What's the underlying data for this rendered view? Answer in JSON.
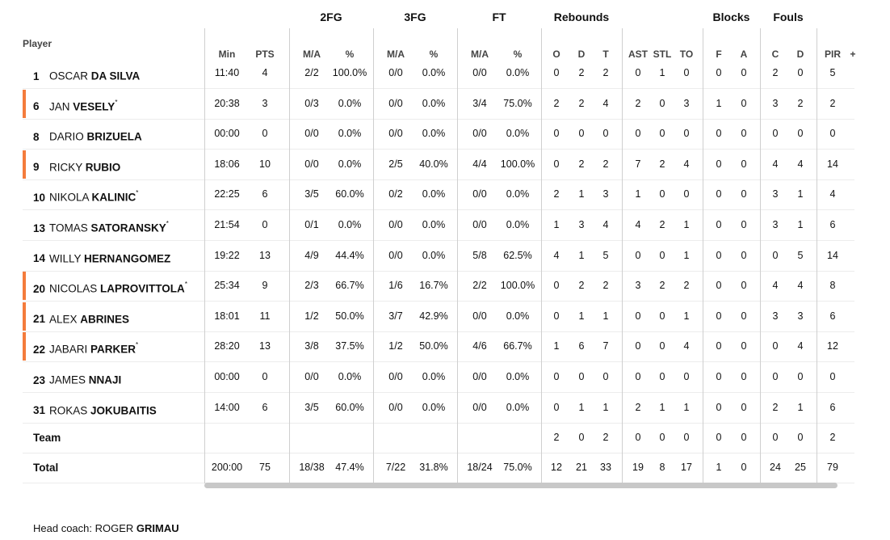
{
  "header": {
    "player_label": "Player",
    "groups": [
      "2FG",
      "3FG",
      "FT",
      "Rebounds",
      "Blocks",
      "Fouls"
    ],
    "cols": [
      "Min",
      "PTS",
      "M/A",
      "%",
      "M/A",
      "%",
      "M/A",
      "%",
      "O",
      "D",
      "T",
      "AST",
      "STL",
      "TO",
      "F",
      "A",
      "C",
      "D",
      "PIR"
    ],
    "plus": "+"
  },
  "players": [
    {
      "num": "1",
      "first": "OSCAR",
      "last": "DA SILVA",
      "star": "",
      "starter": false,
      "stats": [
        "11:40",
        "4",
        "2/2",
        "100.0%",
        "0/0",
        "0.0%",
        "0/0",
        "0.0%",
        "0",
        "2",
        "2",
        "0",
        "1",
        "0",
        "0",
        "0",
        "2",
        "0",
        "5"
      ]
    },
    {
      "num": "6",
      "first": "JAN",
      "last": "VESELY",
      "star": "*",
      "starter": true,
      "stats": [
        "20:38",
        "3",
        "0/3",
        "0.0%",
        "0/0",
        "0.0%",
        "3/4",
        "75.0%",
        "2",
        "2",
        "4",
        "2",
        "0",
        "3",
        "1",
        "0",
        "3",
        "2",
        "2"
      ]
    },
    {
      "num": "8",
      "first": "DARIO",
      "last": "BRIZUELA",
      "star": "",
      "starter": false,
      "stats": [
        "00:00",
        "0",
        "0/0",
        "0.0%",
        "0/0",
        "0.0%",
        "0/0",
        "0.0%",
        "0",
        "0",
        "0",
        "0",
        "0",
        "0",
        "0",
        "0",
        "0",
        "0",
        "0"
      ]
    },
    {
      "num": "9",
      "first": "RICKY",
      "last": "RUBIO",
      "star": "",
      "starter": true,
      "stats": [
        "18:06",
        "10",
        "0/0",
        "0.0%",
        "2/5",
        "40.0%",
        "4/4",
        "100.0%",
        "0",
        "2",
        "2",
        "7",
        "2",
        "4",
        "0",
        "0",
        "4",
        "4",
        "14"
      ]
    },
    {
      "num": "10",
      "first": "NIKOLA",
      "last": "KALINIC",
      "star": "*",
      "starter": false,
      "stats": [
        "22:25",
        "6",
        "3/5",
        "60.0%",
        "0/2",
        "0.0%",
        "0/0",
        "0.0%",
        "2",
        "1",
        "3",
        "1",
        "0",
        "0",
        "0",
        "0",
        "3",
        "1",
        "4"
      ]
    },
    {
      "num": "13",
      "first": "TOMAS",
      "last": "SATORANSKY",
      "star": "*",
      "starter": false,
      "stats": [
        "21:54",
        "0",
        "0/1",
        "0.0%",
        "0/0",
        "0.0%",
        "0/0",
        "0.0%",
        "1",
        "3",
        "4",
        "4",
        "2",
        "1",
        "0",
        "0",
        "3",
        "1",
        "6"
      ]
    },
    {
      "num": "14",
      "first": "WILLY",
      "last": "HERNANGOMEZ",
      "star": "",
      "starter": false,
      "stats": [
        "19:22",
        "13",
        "4/9",
        "44.4%",
        "0/0",
        "0.0%",
        "5/8",
        "62.5%",
        "4",
        "1",
        "5",
        "0",
        "0",
        "1",
        "0",
        "0",
        "0",
        "5",
        "14"
      ]
    },
    {
      "num": "20",
      "first": "NICOLAS",
      "last": "LAPROVITTOLA",
      "star": "*",
      "starter": true,
      "stats": [
        "25:34",
        "9",
        "2/3",
        "66.7%",
        "1/6",
        "16.7%",
        "2/2",
        "100.0%",
        "0",
        "2",
        "2",
        "3",
        "2",
        "2",
        "0",
        "0",
        "4",
        "4",
        "8"
      ]
    },
    {
      "num": "21",
      "first": "ALEX",
      "last": "ABRINES",
      "star": "",
      "starter": true,
      "stats": [
        "18:01",
        "11",
        "1/2",
        "50.0%",
        "3/7",
        "42.9%",
        "0/0",
        "0.0%",
        "0",
        "1",
        "1",
        "0",
        "0",
        "1",
        "0",
        "0",
        "3",
        "3",
        "6"
      ]
    },
    {
      "num": "22",
      "first": "JABARI",
      "last": "PARKER",
      "star": "*",
      "starter": true,
      "stats": [
        "28:20",
        "13",
        "3/8",
        "37.5%",
        "1/2",
        "50.0%",
        "4/6",
        "66.7%",
        "1",
        "6",
        "7",
        "0",
        "0",
        "4",
        "0",
        "0",
        "0",
        "4",
        "12"
      ]
    },
    {
      "num": "23",
      "first": "JAMES",
      "last": "NNAJI",
      "star": "",
      "starter": false,
      "stats": [
        "00:00",
        "0",
        "0/0",
        "0.0%",
        "0/0",
        "0.0%",
        "0/0",
        "0.0%",
        "0",
        "0",
        "0",
        "0",
        "0",
        "0",
        "0",
        "0",
        "0",
        "0",
        "0"
      ]
    },
    {
      "num": "31",
      "first": "ROKAS",
      "last": "JOKUBAITIS",
      "star": "",
      "starter": false,
      "stats": [
        "14:00",
        "6",
        "3/5",
        "60.0%",
        "0/0",
        "0.0%",
        "0/0",
        "0.0%",
        "0",
        "1",
        "1",
        "2",
        "1",
        "1",
        "0",
        "0",
        "2",
        "1",
        "6"
      ]
    }
  ],
  "team": {
    "label": "Team",
    "stats": [
      "",
      "",
      "",
      "",
      "",
      "",
      "",
      "",
      "2",
      "0",
      "2",
      "0",
      "0",
      "0",
      "0",
      "0",
      "0",
      "0",
      "2"
    ]
  },
  "total": {
    "label": "Total",
    "stats": [
      "200:00",
      "75",
      "18/38",
      "47.4%",
      "7/22",
      "31.8%",
      "18/24",
      "75.0%",
      "12",
      "21",
      "33",
      "19",
      "8",
      "17",
      "1",
      "0",
      "24",
      "25",
      "79"
    ]
  },
  "coach": {
    "prefix": "Head coach: ",
    "first": "ROGER",
    "last": "GRIMAU"
  },
  "colors": {
    "starter_marker": "#f47c3c"
  }
}
